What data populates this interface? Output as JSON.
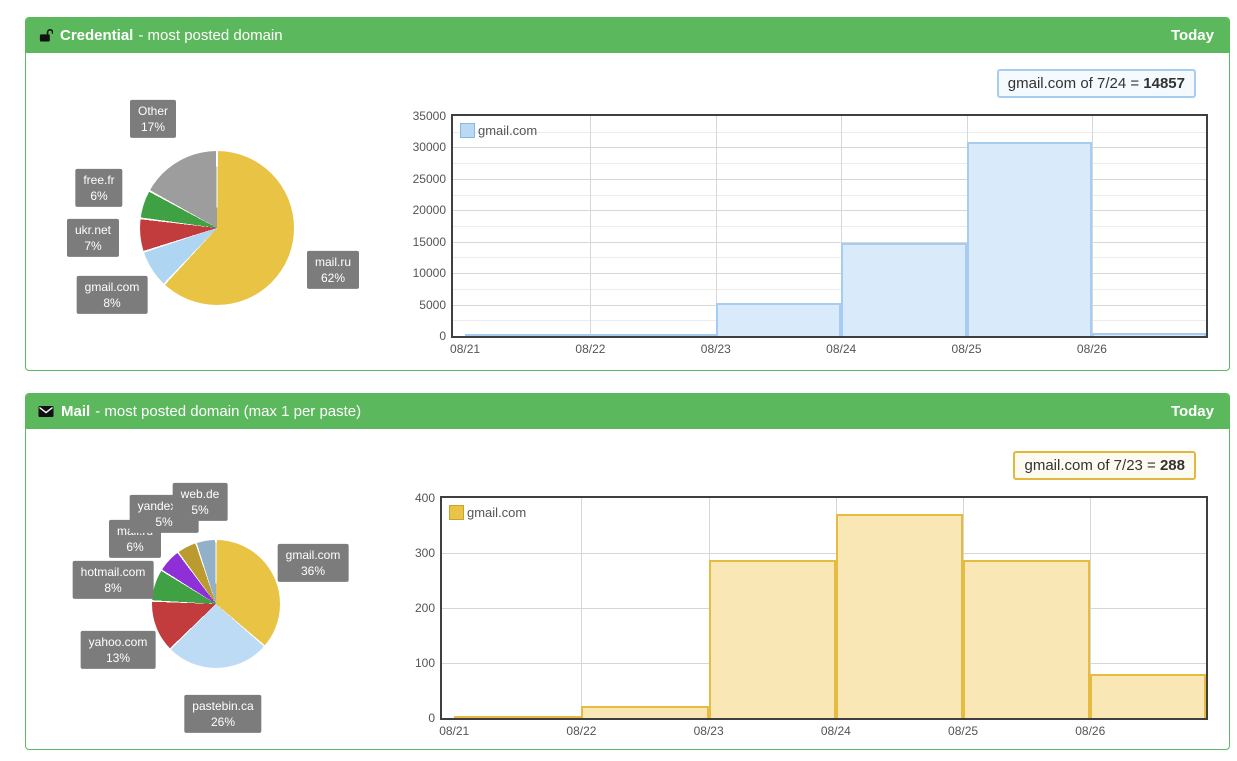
{
  "accent_green": "#5cb85c",
  "panels": [
    {
      "header": {
        "icon": "unlock-icon",
        "title": "Credential",
        "subtitle": "- most posted domain",
        "badge": "Today"
      },
      "tooltip": {
        "prefix": "gmail.com of 7/24 = ",
        "value": "14857"
      }
    },
    {
      "header": {
        "icon": "envelope-icon",
        "title": "Mail",
        "subtitle": "- most posted domain (max 1 per paste)",
        "badge": "Today"
      },
      "tooltip": {
        "prefix": "gmail.com of 7/23 = ",
        "value": "288"
      }
    }
  ],
  "chart_data": [
    {
      "panel": "Credential",
      "type": "pie",
      "title": "",
      "start_angle_deg": 0,
      "clockwise": true,
      "slices": [
        {
          "label": "mail.ru",
          "pct": 62,
          "pct_label": "62%",
          "color": "#e9c343",
          "x": 307,
          "y": 217
        },
        {
          "label": "gmail.com",
          "pct": 8,
          "pct_label": "8%",
          "color": "#aed5f2",
          "x": 86,
          "y": 242
        },
        {
          "label": "ukr.net",
          "pct": 7,
          "pct_label": "7%",
          "color": "#c23c3e",
          "x": 67,
          "y": 185
        },
        {
          "label": "free.fr",
          "pct": 6,
          "pct_label": "6%",
          "color": "#3fa044",
          "x": 73,
          "y": 135
        },
        {
          "label": "Other",
          "pct": 17,
          "pct_label": "17%",
          "color": "#9d9d9d",
          "x": 127,
          "y": 66
        }
      ]
    },
    {
      "panel": "Credential",
      "type": "bar",
      "title": "",
      "categories": [
        "08/21",
        "08/22",
        "08/23",
        "08/24",
        "08/25",
        "08/26"
      ],
      "series": [
        {
          "name": "gmail.com",
          "values": [
            100,
            250,
            5300,
            14857,
            30900,
            500
          ]
        }
      ],
      "ylim": [
        0,
        35000
      ],
      "yticks": [
        0,
        5000,
        10000,
        15000,
        20000,
        25000,
        30000,
        35000
      ],
      "minor_step": 2500,
      "grid": true,
      "legend_position": "top-left",
      "bar_fill": "#d9eafa",
      "bar_border": "#a6cdf1",
      "legend_swatch_fill": "#b9d9f5",
      "legend_swatch_border": "#8ab8e0"
    },
    {
      "panel": "Mail",
      "type": "pie",
      "title": "",
      "start_angle_deg": 0,
      "clockwise": true,
      "slices": [
        {
          "label": "gmail.com",
          "pct": 36,
          "pct_label": "36%",
          "color": "#e9c343",
          "x": 287,
          "y": 134
        },
        {
          "label": "pastebin.ca",
          "pct": 26,
          "pct_label": "26%",
          "color": "#bedbf6",
          "x": 197,
          "y": 285
        },
        {
          "label": "yahoo.com",
          "pct": 13,
          "pct_label": "13%",
          "color": "#c23c3e",
          "x": 92,
          "y": 221
        },
        {
          "label": "hotmail.com",
          "pct": 8,
          "pct_label": "8%",
          "color": "#3fa044",
          "x": 87,
          "y": 151
        },
        {
          "label": "mail.ru",
          "pct": 6,
          "pct_label": "6%",
          "color": "#8e2fd8",
          "x": 109,
          "y": 110
        },
        {
          "label": "yandex.ru",
          "pct": 5,
          "pct_label": "5%",
          "color": "#bb9b30",
          "x": 138,
          "y": 85
        },
        {
          "label": "web.de",
          "pct": 5,
          "pct_label": "5%",
          "color": "#92b1c8",
          "x": 174,
          "y": 73
        }
      ]
    },
    {
      "panel": "Mail",
      "type": "bar",
      "title": "",
      "categories": [
        "08/21",
        "08/22",
        "08/23",
        "08/24",
        "08/25",
        "08/26"
      ],
      "series": [
        {
          "name": "gmail.com",
          "values": [
            2,
            22,
            288,
            370,
            288,
            80
          ]
        }
      ],
      "ylim": [
        0,
        400
      ],
      "yticks": [
        0,
        100,
        200,
        300,
        400
      ],
      "minor_step": null,
      "grid": true,
      "legend_position": "top-left",
      "bar_fill": "#f9e8b6",
      "bar_border": "#e6bb42",
      "legend_swatch_fill": "#e9c445",
      "legend_swatch_border": "#c8a232"
    }
  ]
}
